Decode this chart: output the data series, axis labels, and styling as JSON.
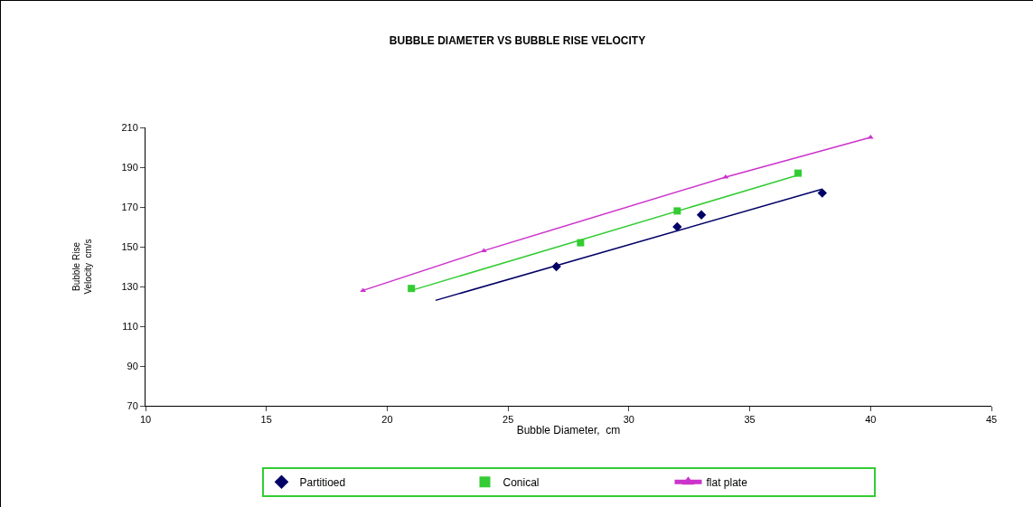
{
  "chart_data": {
    "type": "scatter",
    "title": "BUBBLE DIAMETER VS BUBBLE RISE VELOCITY",
    "xlabel": "Bubble Diameter,  cm",
    "ylabel": "Bubble Rise\nVelocity  cm/s",
    "series": [
      {
        "name": "Partitioed",
        "color": "#000066",
        "marker": "diamond",
        "x": [
          27,
          32,
          33,
          38
        ],
        "values": [
          140,
          160,
          166,
          177
        ]
      },
      {
        "name": "Conical",
        "color": "#33cc33",
        "marker": "square",
        "x": [
          21,
          28,
          32,
          37
        ],
        "values": [
          129,
          152,
          168,
          187
        ]
      },
      {
        "name": "flat plate",
        "type": "line",
        "color": "#cc33cc",
        "marker": "triangle",
        "x": [
          19,
          24,
          34,
          40
        ],
        "values": [
          128,
          148,
          185,
          205
        ]
      },
      {
        "type": "line",
        "color": "#000066",
        "marker": "none",
        "x": [
          22,
          38
        ],
        "values": [
          123,
          179
        ]
      },
      {
        "type": "line",
        "color": "#33cc33",
        "marker": "none",
        "x": [
          21,
          37
        ],
        "values": [
          128,
          186
        ]
      }
    ],
    "xlim": [
      10,
      45
    ],
    "xticks": [
      10,
      15,
      20,
      25,
      30,
      35,
      40,
      45
    ],
    "ylim": [
      70,
      210
    ],
    "yticks": [
      70,
      90,
      110,
      130,
      150,
      170,
      190,
      210
    ],
    "grid": false,
    "legend": "bottom"
  }
}
